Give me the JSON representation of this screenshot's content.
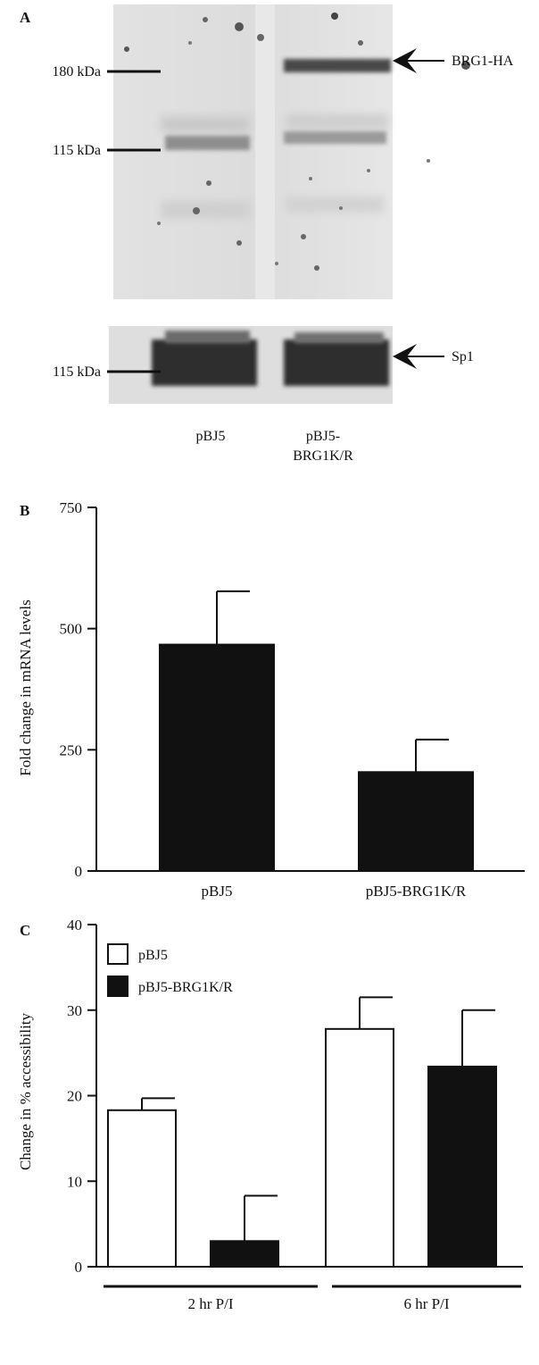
{
  "panel_a": {
    "letter": "A",
    "top_blot": {
      "markers": [
        "180 kDa",
        "115 kDa"
      ],
      "band_label": "BRG1-HA"
    },
    "bottom_blot": {
      "markers": [
        "115 kDa"
      ],
      "band_label": "Sp1"
    },
    "lanes": [
      "pBJ5",
      "pBJ5-",
      "BRG1K/R"
    ]
  },
  "panel_b": {
    "letter": "B",
    "ylabel": "Fold change in mRNA levels"
  },
  "panel_c": {
    "letter": "C",
    "ylabel": "Change in % accessibility",
    "legend": [
      "pBJ5",
      "pBJ5-BRG1K/R"
    ]
  },
  "chart_data": [
    {
      "type": "bar",
      "panel": "B",
      "categories": [
        "pBJ5",
        "pBJ5-BRG1K/R"
      ],
      "values": [
        467,
        204
      ],
      "errors": [
        110,
        67
      ],
      "ylim": [
        0,
        750
      ],
      "yticks": [
        0,
        250,
        500,
        750
      ],
      "ylabel": "Fold change in mRNA levels",
      "xlabel": "",
      "colors": [
        "#111111",
        "#111111"
      ]
    },
    {
      "type": "bar",
      "panel": "C",
      "categories": [
        "2 hr P/I",
        "6 hr P/I"
      ],
      "series": [
        {
          "name": "pBJ5",
          "values": [
            18.3,
            27.8
          ],
          "errors": [
            1.4,
            3.7
          ],
          "color": "#ffffff"
        },
        {
          "name": "pBJ5-BRG1K/R",
          "values": [
            3.0,
            23.4
          ],
          "errors": [
            5.3,
            6.6
          ],
          "color": "#111111"
        }
      ],
      "ylim": [
        0,
        40
      ],
      "yticks": [
        0,
        10,
        20,
        30,
        40
      ],
      "ylabel": "Change in % accessibility",
      "xlabel": "",
      "legend_position": "top-left"
    }
  ]
}
